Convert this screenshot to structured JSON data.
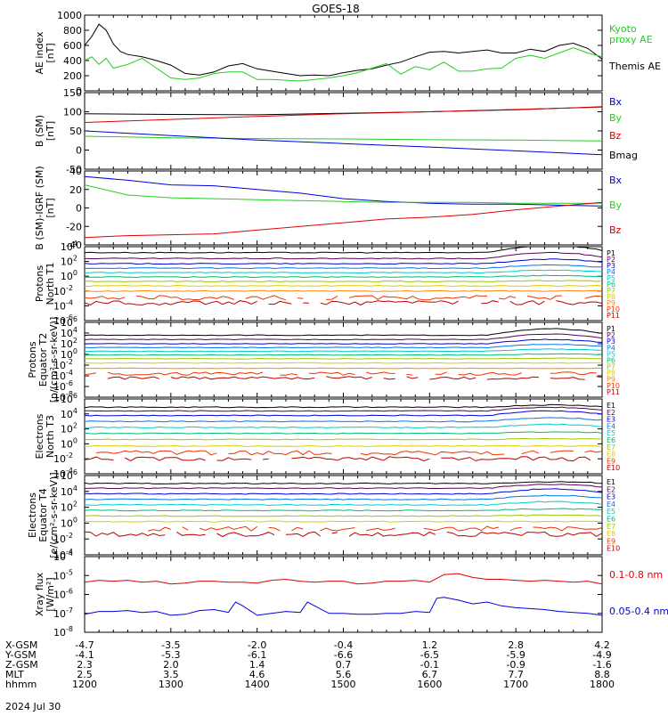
{
  "title": "GOES-18",
  "colors": {
    "black": "#000000",
    "blue": "#0000dd",
    "green": "#22cc22",
    "red": "#dd0000"
  },
  "chart_data": [
    {
      "type": "line",
      "id": "ae",
      "ylabel": [
        "AE index",
        "[nT]"
      ],
      "ylim": [
        0,
        1000
      ],
      "ylog": false,
      "yticks": [
        "0",
        "200",
        "400",
        "600",
        "800",
        "1000"
      ],
      "ytick_values": [
        0,
        200,
        400,
        600,
        800,
        1000
      ],
      "legend": [
        {
          "text": "Kyoto",
          "color": "#22cc22"
        },
        {
          "text": "proxy AE",
          "color": "#22cc22"
        },
        {
          "text": "Themis AE",
          "color": "#000000"
        }
      ],
      "series": [
        {
          "name": "Themis AE",
          "color": "#000000",
          "x": [
            1200,
            1205,
            1210,
            1215,
            1220,
            1225,
            1230,
            1240,
            1250,
            1300,
            1310,
            1320,
            1330,
            1340,
            1350,
            1400,
            1410,
            1420,
            1430,
            1440,
            1450,
            1500,
            1510,
            1520,
            1530,
            1540,
            1550,
            1600,
            1610,
            1620,
            1630,
            1640,
            1650,
            1700,
            1710,
            1720,
            1730,
            1740,
            1750,
            1800
          ],
          "y": [
            600,
            720,
            880,
            800,
            620,
            520,
            480,
            450,
            400,
            340,
            230,
            210,
            250,
            330,
            360,
            290,
            260,
            230,
            200,
            210,
            200,
            240,
            270,
            290,
            340,
            380,
            450,
            510,
            520,
            500,
            520,
            540,
            500,
            500,
            550,
            520,
            600,
            630,
            560,
            420
          ]
        },
        {
          "name": "Kyoto proxy AE",
          "color": "#22cc22",
          "x": [
            1200,
            1205,
            1210,
            1215,
            1220,
            1230,
            1240,
            1250,
            1300,
            1310,
            1320,
            1330,
            1340,
            1350,
            1400,
            1410,
            1420,
            1430,
            1440,
            1450,
            1500,
            1510,
            1520,
            1530,
            1540,
            1550,
            1600,
            1610,
            1620,
            1630,
            1640,
            1650,
            1700,
            1710,
            1720,
            1730,
            1740,
            1750,
            1800
          ],
          "y": [
            400,
            450,
            350,
            430,
            300,
            350,
            430,
            300,
            170,
            150,
            170,
            230,
            250,
            250,
            150,
            150,
            140,
            130,
            150,
            170,
            200,
            240,
            300,
            360,
            220,
            320,
            280,
            380,
            260,
            260,
            290,
            300,
            430,
            470,
            430,
            500,
            570,
            500,
            450
          ]
        }
      ]
    },
    {
      "type": "line",
      "id": "bsm",
      "ylabel": [
        "B (SM)",
        "[nT]"
      ],
      "ylim": [
        -50,
        150
      ],
      "ylog": false,
      "yticks": [
        "-50",
        "0",
        "50",
        "100",
        "150"
      ],
      "ytick_values": [
        -50,
        0,
        50,
        100,
        150
      ],
      "legend": [
        {
          "text": "Bx",
          "color": "#0000dd"
        },
        {
          "text": "By",
          "color": "#22cc22"
        },
        {
          "text": "Bz",
          "color": "#dd0000"
        },
        {
          "text": "Bmag",
          "color": "#000000"
        }
      ],
      "series": [
        {
          "name": "Bmag",
          "color": "#000000",
          "x": [
            1200,
            1300,
            1400,
            1500,
            1600,
            1700,
            1800
          ],
          "y": [
            95,
            93,
            92,
            96,
            100,
            105,
            113
          ]
        },
        {
          "name": "Bz",
          "color": "#dd0000",
          "x": [
            1200,
            1300,
            1400,
            1500,
            1600,
            1700,
            1800
          ],
          "y": [
            72,
            80,
            88,
            95,
            100,
            106,
            112
          ]
        },
        {
          "name": "By",
          "color": "#22cc22",
          "x": [
            1200,
            1300,
            1400,
            1500,
            1600,
            1700,
            1800
          ],
          "y": [
            36,
            32,
            30,
            29,
            27,
            26,
            24
          ]
        },
        {
          "name": "Bx",
          "color": "#0000dd",
          "x": [
            1200,
            1300,
            1400,
            1500,
            1600,
            1700,
            1800
          ],
          "y": [
            50,
            38,
            26,
            17,
            8,
            -2,
            -12
          ]
        }
      ]
    },
    {
      "type": "line",
      "id": "bigrf",
      "ylabel": [
        "B (SM)-IGRF (SM)",
        "[nT]"
      ],
      "ylim": [
        -40,
        40
      ],
      "ylog": false,
      "yticks": [
        "-40",
        "-20",
        "0",
        "20",
        "40"
      ],
      "ytick_values": [
        -40,
        -20,
        0,
        20,
        40
      ],
      "legend": [
        {
          "text": "Bx",
          "color": "#0000dd"
        },
        {
          "text": "By",
          "color": "#22cc22"
        },
        {
          "text": "Bz",
          "color": "#dd0000"
        }
      ],
      "series": [
        {
          "name": "Bx",
          "color": "#0000dd",
          "x": [
            1200,
            1230,
            1300,
            1330,
            1400,
            1430,
            1500,
            1530,
            1600,
            1630,
            1700,
            1730,
            1800
          ],
          "y": [
            34,
            30,
            25,
            24,
            20,
            16,
            10,
            7,
            5,
            4,
            4,
            3,
            2
          ]
        },
        {
          "name": "By",
          "color": "#22cc22",
          "x": [
            1200,
            1230,
            1300,
            1330,
            1400,
            1430,
            1500,
            1530,
            1600,
            1630,
            1700,
            1730,
            1800
          ],
          "y": [
            25,
            14,
            11,
            10,
            9,
            8,
            7,
            6,
            6,
            6,
            5,
            5,
            5
          ]
        },
        {
          "name": "Bz",
          "color": "#dd0000",
          "x": [
            1200,
            1230,
            1300,
            1330,
            1400,
            1430,
            1500,
            1530,
            1600,
            1630,
            1700,
            1730,
            1800
          ],
          "y": [
            -32,
            -30,
            -29,
            -28,
            -24,
            -20,
            -16,
            -12,
            -10,
            -7,
            -2,
            2,
            6
          ]
        }
      ]
    },
    {
      "type": "line",
      "id": "pn",
      "ylabel": [
        "Protons",
        "North T1"
      ],
      "ylim": [
        -6,
        4
      ],
      "ylog": true,
      "ytick_exponents": [
        -6,
        -4,
        -2,
        0,
        2,
        4
      ],
      "legend": [
        {
          "text": "P1",
          "color": "#000000"
        },
        {
          "text": "P2",
          "color": "#550055"
        },
        {
          "text": "P3",
          "color": "#0000dd"
        },
        {
          "text": "P4",
          "color": "#0077ee"
        },
        {
          "text": "P5",
          "color": "#00cccc"
        },
        {
          "text": "P6",
          "color": "#00bb77"
        },
        {
          "text": "P7",
          "color": "#99cc00"
        },
        {
          "text": "P8",
          "color": "#ddcc00"
        },
        {
          "text": "P9",
          "color": "#ff8800"
        },
        {
          "text": "P10",
          "color": "#ee3300"
        },
        {
          "text": "P11",
          "color": "#bb0000"
        }
      ],
      "series_levels": [
        3.2,
        2.4,
        1.7,
        1.1,
        0.5,
        -0.1,
        -0.7,
        -1.3,
        -2.0,
        -2.9,
        -3.6
      ],
      "event_shift": [
        1.0,
        0.8,
        0.6,
        0.4,
        0.3,
        0.2,
        0.1,
        0.0,
        0.0,
        0.0,
        0.0
      ]
    },
    {
      "type": "line",
      "id": "pe",
      "ylabel": [
        "Protons",
        "Equator T2",
        "[p/(cm²-s-sr-keV)]"
      ],
      "ylim": [
        -8,
        6
      ],
      "ylog": true,
      "ytick_exponents": [
        -8,
        -6,
        -4,
        -2,
        0,
        2,
        4,
        6
      ],
      "legend": [
        {
          "text": "P1",
          "color": "#000000"
        },
        {
          "text": "P2",
          "color": "#550055"
        },
        {
          "text": "P3",
          "color": "#0000dd"
        },
        {
          "text": "P4",
          "color": "#0077ee"
        },
        {
          "text": "P5",
          "color": "#00cccc"
        },
        {
          "text": "P6",
          "color": "#00bb77"
        },
        {
          "text": "P7",
          "color": "#99cc00"
        },
        {
          "text": "P8",
          "color": "#ddcc00"
        },
        {
          "text": "P9",
          "color": "#ff8800"
        },
        {
          "text": "P10",
          "color": "#ee3300"
        },
        {
          "text": "P11",
          "color": "#bb0000"
        }
      ],
      "series_levels": [
        3.6,
        2.8,
        2.0,
        1.3,
        0.6,
        -0.1,
        -0.8,
        -1.6,
        -2.6,
        -3.6,
        -4.4
      ],
      "event_shift": [
        1.2,
        1.0,
        0.8,
        0.6,
        0.4,
        0.2,
        0.1,
        0.0,
        0.0,
        0.0,
        0.0
      ]
    },
    {
      "type": "line",
      "id": "en",
      "ylabel": [
        "Electrons",
        "North T3"
      ],
      "ylim": [
        -4,
        6
      ],
      "ylog": true,
      "ytick_exponents": [
        -4,
        -2,
        0,
        2,
        4,
        6
      ],
      "legend": [
        {
          "text": "E1",
          "color": "#000000"
        },
        {
          "text": "E2",
          "color": "#550055"
        },
        {
          "text": "E3",
          "color": "#0000dd"
        },
        {
          "text": "E4",
          "color": "#0077ee"
        },
        {
          "text": "E5",
          "color": "#00cccc"
        },
        {
          "text": "E6",
          "color": "#00bb77"
        },
        {
          "text": "E7",
          "color": "#99cc00"
        },
        {
          "text": "E8",
          "color": "#ddcc00"
        },
        {
          "text": "E9",
          "color": "#ee3300"
        },
        {
          "text": "E10",
          "color": "#bb0000"
        }
      ],
      "series_levels": [
        4.9,
        4.4,
        3.8,
        3.0,
        2.2,
        1.4,
        0.6,
        -0.3,
        -1.2,
        -2.0
      ],
      "event_shift": [
        0.3,
        0.5,
        0.6,
        0.5,
        0.4,
        0.2,
        0.1,
        0.0,
        0.0,
        0.0
      ]
    },
    {
      "type": "line",
      "id": "ee",
      "ylabel": [
        "Electrons",
        "Equator T4",
        "[e/(cm²-s-sr-keV)]"
      ],
      "ylim": [
        -4,
        6
      ],
      "ylog": true,
      "ytick_exponents": [
        -4,
        -2,
        0,
        2,
        4,
        6
      ],
      "legend": [
        {
          "text": "E1",
          "color": "#000000"
        },
        {
          "text": "E2",
          "color": "#550055"
        },
        {
          "text": "E3",
          "color": "#0000dd"
        },
        {
          "text": "E4",
          "color": "#0077ee"
        },
        {
          "text": "E5",
          "color": "#00cccc"
        },
        {
          "text": "E6",
          "color": "#00bb77"
        },
        {
          "text": "E7",
          "color": "#99cc00"
        },
        {
          "text": "E8",
          "color": "#ddcc00"
        },
        {
          "text": "E9",
          "color": "#ee3300"
        },
        {
          "text": "E10",
          "color": "#bb0000"
        }
      ],
      "series_levels": [
        5.0,
        4.4,
        3.7,
        3.0,
        2.3,
        1.6,
        0.9,
        0.2,
        -0.7,
        -1.4
      ],
      "event_shift": [
        0.2,
        0.5,
        0.6,
        0.5,
        0.4,
        0.2,
        0.1,
        0.0,
        0.0,
        0.0
      ]
    },
    {
      "type": "line",
      "id": "xray",
      "ylabel": [
        "Xray flux",
        "[W/m²]"
      ],
      "ylim": [
        -8,
        -4
      ],
      "ylog": true,
      "ytick_exponents": [
        -8,
        -7,
        -6,
        -5,
        -4
      ],
      "legend": [
        {
          "text": "0.1-0.8 nm",
          "color": "#dd0000"
        },
        {
          "text": "0.05-0.4 nm",
          "color": "#0000dd"
        }
      ],
      "series": [
        {
          "name": "0.1-0.8 nm",
          "color": "#dd0000",
          "x": [
            1200,
            1210,
            1220,
            1230,
            1240,
            1250,
            1300,
            1310,
            1320,
            1330,
            1340,
            1350,
            1400,
            1410,
            1420,
            1430,
            1440,
            1450,
            1500,
            1510,
            1520,
            1530,
            1540,
            1550,
            1600,
            1610,
            1620,
            1630,
            1640,
            1650,
            1700,
            1710,
            1720,
            1730,
            1740,
            1750,
            1800
          ],
          "y": [
            -5.35,
            -5.25,
            -5.3,
            -5.25,
            -5.35,
            -5.3,
            -5.45,
            -5.4,
            -5.3,
            -5.3,
            -5.35,
            -5.35,
            -5.4,
            -5.25,
            -5.2,
            -5.3,
            -5.35,
            -5.3,
            -5.3,
            -5.45,
            -5.4,
            -5.3,
            -5.3,
            -5.25,
            -5.35,
            -4.95,
            -4.9,
            -5.1,
            -5.2,
            -5.2,
            -5.25,
            -5.3,
            -5.25,
            -5.3,
            -5.35,
            -5.3,
            -5.45
          ]
        },
        {
          "name": "0.05-0.4 nm",
          "color": "#0000dd",
          "x": [
            1200,
            1210,
            1220,
            1230,
            1240,
            1250,
            1300,
            1310,
            1320,
            1330,
            1340,
            1345,
            1350,
            1400,
            1410,
            1420,
            1430,
            1435,
            1440,
            1450,
            1500,
            1510,
            1520,
            1530,
            1540,
            1550,
            1600,
            1605,
            1610,
            1620,
            1630,
            1640,
            1650,
            1700,
            1710,
            1720,
            1730,
            1740,
            1750,
            1800
          ],
          "y": [
            -7.05,
            -6.9,
            -6.9,
            -6.85,
            -6.95,
            -6.9,
            -7.1,
            -7.05,
            -6.85,
            -6.8,
            -6.95,
            -6.4,
            -6.6,
            -7.1,
            -7.0,
            -6.9,
            -6.95,
            -6.4,
            -6.6,
            -7.0,
            -7.0,
            -7.05,
            -7.05,
            -7.0,
            -7.0,
            -6.9,
            -6.95,
            -6.2,
            -6.15,
            -6.3,
            -6.5,
            -6.4,
            -6.6,
            -6.7,
            -6.75,
            -6.8,
            -6.9,
            -6.95,
            -7.0,
            -7.1
          ]
        }
      ]
    }
  ],
  "xaxis": {
    "row_labels": [
      "X-GSM",
      "Y-GSM",
      "Z-GSM",
      "MLT",
      "hhmm"
    ],
    "date_label": "2024 Jul 30",
    "ticks": [
      {
        "x": 1200,
        "cols": [
          "-4.7",
          "-4.1",
          "2.3",
          "2.5",
          "1200"
        ]
      },
      {
        "x": 1300,
        "cols": [
          "-3.5",
          "-5.3",
          "2.0",
          "3.5",
          "1300"
        ]
      },
      {
        "x": 1400,
        "cols": [
          "-2.0",
          "-6.1",
          "1.4",
          "4.6",
          "1400"
        ]
      },
      {
        "x": 1500,
        "cols": [
          "-0.4",
          "-6.6",
          "0.7",
          "5.6",
          "1500"
        ]
      },
      {
        "x": 1600,
        "cols": [
          "1.2",
          "-6.5",
          "-0.1",
          "6.7",
          "1600"
        ]
      },
      {
        "x": 1700,
        "cols": [
          "2.8",
          "-5.9",
          "-0.9",
          "7.7",
          "1700"
        ]
      },
      {
        "x": 1800,
        "cols": [
          "4.2",
          "-4.9",
          "-1.6",
          "8.8",
          "1800"
        ]
      }
    ]
  }
}
